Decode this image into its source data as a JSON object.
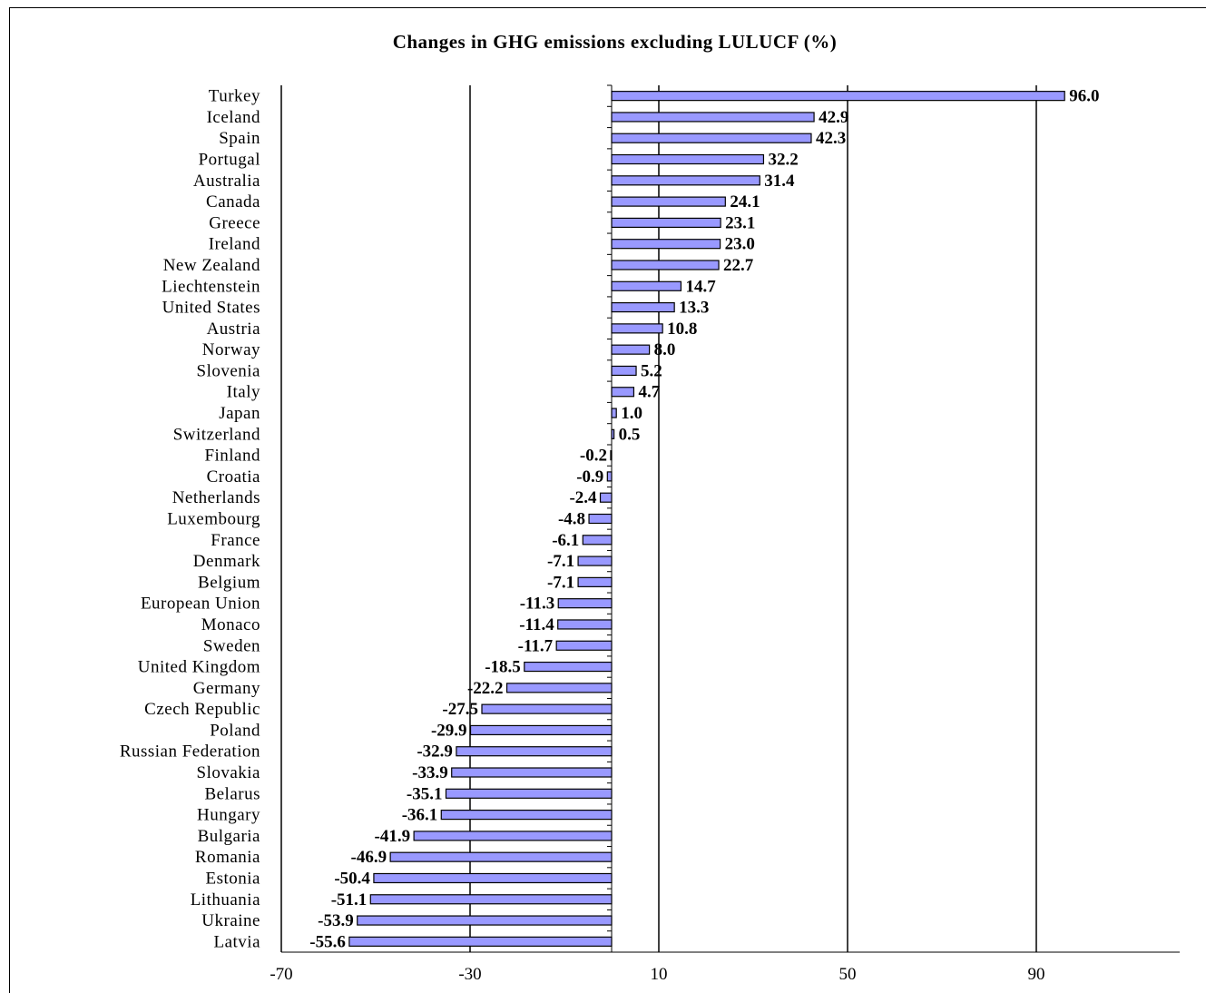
{
  "chart_data": {
    "type": "bar",
    "orientation": "horizontal",
    "title": "Changes in GHG emissions excluding LULUCF (%)",
    "xlabel": "",
    "ylabel": "",
    "xlim": [
      -70,
      120
    ],
    "xticks": [
      -70,
      -30,
      10,
      50,
      90
    ],
    "grid": true,
    "bar_color": "#9999ff",
    "categories": [
      "Turkey",
      "Iceland",
      "Spain",
      "Portugal",
      "Australia",
      "Canada",
      "Greece",
      "Ireland",
      "New Zealand",
      "Liechtenstein",
      "United States",
      "Austria",
      "Norway",
      "Slovenia",
      "Italy",
      "Japan",
      "Switzerland",
      "Finland",
      "Croatia",
      "Netherlands",
      "Luxembourg",
      "France",
      "Denmark",
      "Belgium",
      "European Union",
      "Monaco",
      "Sweden",
      "United Kingdom",
      "Germany",
      "Czech Republic",
      "Poland",
      "Russian Federation",
      "Slovakia",
      "Belarus",
      "Hungary",
      "Bulgaria",
      "Romania",
      "Estonia",
      "Lithuania",
      "Ukraine",
      "Latvia"
    ],
    "values": [
      96.0,
      42.9,
      42.3,
      32.2,
      31.4,
      24.1,
      23.1,
      23.0,
      22.7,
      14.7,
      13.3,
      10.8,
      8.0,
      5.2,
      4.7,
      1.0,
      0.5,
      -0.2,
      -0.9,
      -2.4,
      -4.8,
      -6.1,
      -7.1,
      -7.1,
      -11.3,
      -11.4,
      -11.7,
      -18.5,
      -22.2,
      -27.5,
      -29.9,
      -32.9,
      -33.9,
      -35.1,
      -36.1,
      -41.9,
      -46.9,
      -50.4,
      -51.1,
      -53.9,
      -55.6
    ],
    "value_labels": [
      "96.0",
      "42.9",
      "42.3",
      "32.2",
      "31.4",
      "24.1",
      "23.1",
      "23.0",
      "22.7",
      "14.7",
      "13.3",
      "10.8",
      "8.0",
      "5.2",
      "4.7",
      "1.0",
      "0.5",
      "-0.2",
      "-0.9",
      "-2.4",
      "-4.8",
      "-6.1",
      "-7.1",
      "-7.1",
      "-11.3",
      "-11.4",
      "-11.7",
      "-18.5",
      "-22.2",
      "-27.5",
      "-29.9",
      "-32.9",
      "-33.9",
      "-35.1",
      "-36.1",
      "-41.9",
      "-46.9",
      "-50.4",
      "-51.1",
      "-53.9",
      "-55.6"
    ],
    "tick_labels": [
      "-70",
      "-30",
      "10",
      "50",
      "90"
    ]
  }
}
